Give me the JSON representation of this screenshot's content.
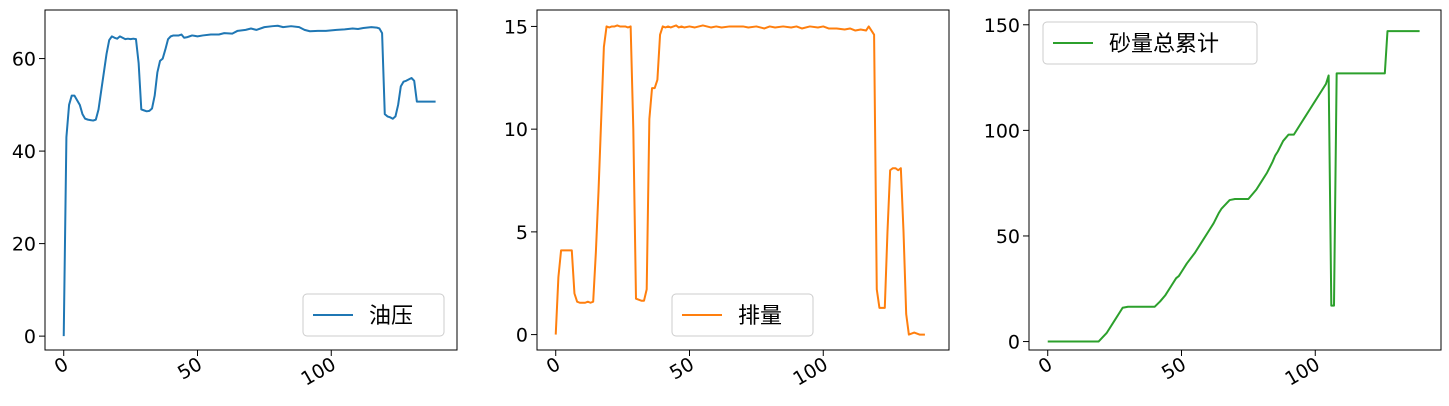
{
  "chart_data": [
    {
      "type": "line",
      "title": "",
      "xlabel": "",
      "ylabel": "",
      "xlim": [
        -7,
        147
      ],
      "ylim": [
        -3,
        70.5
      ],
      "xticks": [
        0,
        50,
        100
      ],
      "yticks": [
        0,
        20,
        40,
        60
      ],
      "xtick_labels": [
        "0",
        "50",
        "100"
      ],
      "ytick_labels": [
        "0",
        "20",
        "40",
        "60"
      ],
      "legend_position": "lower-right",
      "series": [
        {
          "name": "油压",
          "color": "#1f77b4",
          "x": [
            0,
            1,
            2,
            3,
            4,
            5,
            6,
            7,
            8,
            9,
            10,
            11,
            12,
            13,
            14,
            15,
            16,
            17,
            18,
            19,
            20,
            21,
            22,
            23,
            24,
            25,
            26,
            27,
            28,
            29,
            30,
            31,
            32,
            33,
            34,
            35,
            36,
            37,
            38,
            39,
            40,
            41,
            42,
            43,
            44,
            45,
            46,
            47,
            48,
            49,
            50,
            52,
            55,
            58,
            60,
            63,
            65,
            68,
            70,
            72,
            75,
            78,
            80,
            82,
            85,
            88,
            90,
            92,
            95,
            98,
            100,
            102,
            105,
            108,
            110,
            112,
            115,
            117,
            118,
            119,
            120,
            121,
            122,
            123,
            124,
            125,
            126,
            127,
            128,
            129,
            130,
            131,
            132,
            133,
            134,
            135,
            136,
            137,
            138,
            139
          ],
          "y": [
            0,
            43,
            50,
            52,
            52,
            51,
            50,
            48,
            47,
            46.8,
            46.7,
            46.6,
            46.8,
            49,
            53,
            57,
            61,
            64,
            64.8,
            64.5,
            64.3,
            64.8,
            64.5,
            64.2,
            64.3,
            64.2,
            64.3,
            64.2,
            59,
            49,
            48.8,
            48.6,
            48.7,
            49.2,
            52,
            57,
            59.5,
            60,
            62,
            64.2,
            64.8,
            65,
            65,
            65,
            65.2,
            64.5,
            64.6,
            64.8,
            65,
            64.9,
            64.8,
            65,
            65.2,
            65.2,
            65.5,
            65.4,
            66,
            66.2,
            66.5,
            66.2,
            66.8,
            67,
            67.1,
            66.8,
            67,
            66.8,
            66.2,
            65.9,
            66,
            66,
            66.1,
            66.2,
            66.3,
            66.5,
            66.4,
            66.6,
            66.8,
            66.7,
            66.5,
            65.5,
            48,
            47.5,
            47.3,
            47,
            47.5,
            50,
            54,
            55,
            55.2,
            55.5,
            55.8,
            55.2,
            50.7,
            50.7,
            50.7,
            50.7,
            50.7,
            50.7,
            50.7,
            50.7
          ]
        }
      ]
    },
    {
      "type": "line",
      "title": "",
      "xlabel": "",
      "ylabel": "",
      "xlim": [
        -7,
        147
      ],
      "ylim": [
        -0.75,
        15.8
      ],
      "xticks": [
        0,
        50,
        100
      ],
      "yticks": [
        0,
        5,
        10,
        15
      ],
      "xtick_labels": [
        "0",
        "50",
        "100"
      ],
      "ytick_labels": [
        "0",
        "5",
        "10",
        "15"
      ],
      "legend_position": "lower-center",
      "series": [
        {
          "name": "排量",
          "color": "#ff7f0e",
          "x": [
            0,
            1,
            2,
            3,
            4,
            5,
            6,
            7,
            8,
            9,
            10,
            11,
            12,
            13,
            14,
            15,
            16,
            17,
            18,
            19,
            20,
            21,
            22,
            23,
            24,
            25,
            26,
            27,
            28,
            29,
            30,
            31,
            32,
            33,
            34,
            35,
            36,
            37,
            38,
            39,
            40,
            41,
            42,
            43,
            44,
            45,
            46,
            47,
            48,
            50,
            52,
            55,
            58,
            60,
            62,
            65,
            68,
            70,
            72,
            75,
            78,
            80,
            82,
            85,
            88,
            90,
            92,
            95,
            98,
            100,
            102,
            105,
            108,
            110,
            112,
            114,
            116,
            117,
            118,
            119,
            120,
            121,
            122,
            123,
            124,
            125,
            126,
            127,
            128,
            129,
            130,
            131,
            132,
            133,
            134,
            135,
            136,
            137,
            138
          ],
          "y": [
            0,
            2.8,
            4.1,
            4.1,
            4.1,
            4.1,
            4.1,
            2,
            1.6,
            1.55,
            1.55,
            1.55,
            1.6,
            1.55,
            1.6,
            4,
            7,
            10.5,
            14,
            15,
            14.95,
            15,
            15,
            15.05,
            15,
            15,
            15,
            14.95,
            15,
            10,
            1.75,
            1.7,
            1.65,
            1.65,
            2.2,
            10.5,
            12,
            12,
            12.4,
            14.6,
            15,
            14.95,
            15,
            14.95,
            15,
            15.05,
            14.95,
            15,
            14.95,
            15,
            14.95,
            15.05,
            14.95,
            15,
            14.95,
            15,
            15,
            15,
            14.95,
            15,
            14.9,
            15,
            14.95,
            15,
            14.95,
            15,
            14.9,
            15,
            14.95,
            15,
            14.9,
            14.9,
            14.85,
            14.9,
            14.8,
            14.85,
            14.8,
            15,
            14.8,
            14.6,
            2.2,
            1.3,
            1.3,
            1.3,
            5,
            8,
            8.1,
            8.1,
            8,
            8.1,
            5,
            1,
            0,
            0.05,
            0.1,
            0.05,
            0,
            0,
            0
          ]
        }
      ]
    },
    {
      "type": "line",
      "title": "",
      "xlabel": "",
      "ylabel": "",
      "xlim": [
        -7,
        147
      ],
      "ylim": [
        -4,
        157
      ],
      "xticks": [
        0,
        50,
        100
      ],
      "yticks": [
        0,
        50,
        100,
        150
      ],
      "xtick_labels": [
        "0",
        "50",
        "100"
      ],
      "ytick_labels": [
        "0",
        "50",
        "100",
        "150"
      ],
      "legend_position": "upper-left",
      "series": [
        {
          "name": "砂量总累计",
          "color": "#2ca02c",
          "x": [
            0,
            5,
            10,
            15,
            19,
            22,
            25,
            27,
            28,
            30,
            33,
            36,
            38,
            40,
            42,
            44,
            46,
            48,
            49,
            50,
            52,
            55,
            58,
            60,
            62,
            64,
            65,
            68,
            70,
            72,
            75,
            78,
            80,
            82,
            84,
            85,
            86,
            88,
            90,
            92,
            94,
            96,
            98,
            100,
            102,
            104,
            105,
            106,
            107,
            108,
            110,
            113,
            116,
            119,
            122,
            125,
            126,
            127,
            128,
            130,
            133,
            136,
            139
          ],
          "y": [
            0,
            0,
            0,
            0,
            0,
            4,
            10,
            14,
            16,
            16.5,
            16.5,
            16.5,
            16.5,
            16.5,
            19,
            22,
            26,
            30,
            31,
            33,
            37,
            42,
            48,
            52,
            56,
            61,
            63,
            67,
            67.5,
            67.5,
            67.5,
            72,
            76,
            80,
            85,
            88,
            90,
            95,
            98,
            98,
            102,
            106,
            110,
            114,
            118,
            122,
            126,
            17,
            17,
            127,
            127,
            127,
            127,
            127,
            127,
            127,
            127,
            147,
            147,
            147,
            147,
            147,
            147
          ]
        }
      ]
    }
  ]
}
